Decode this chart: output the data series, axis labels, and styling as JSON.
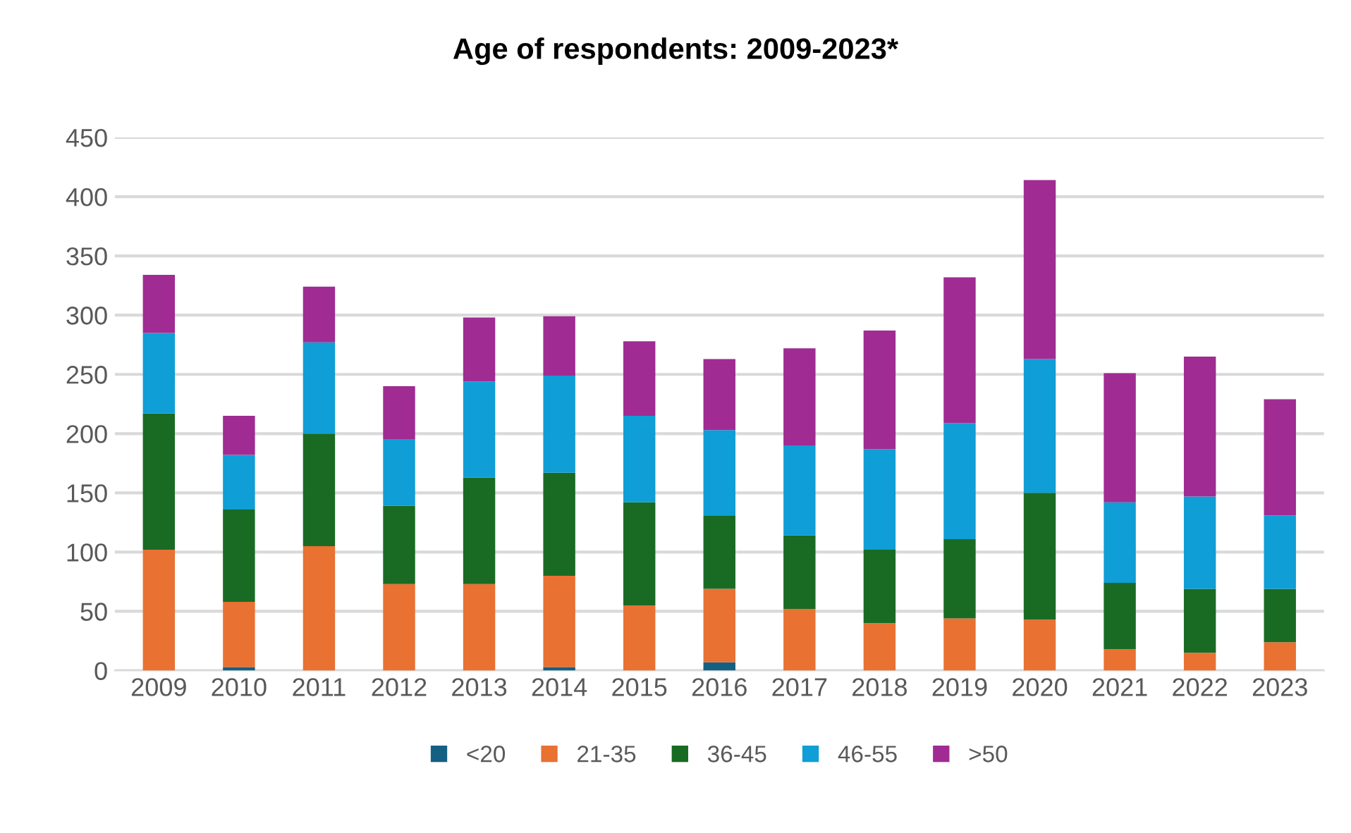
{
  "chart_data": {
    "type": "bar",
    "title": "Age of respondents: 2009-2023*",
    "stacked": true,
    "categories": [
      "2009",
      "2010",
      "2011",
      "2012",
      "2013",
      "2014",
      "2015",
      "2016",
      "2017",
      "2018",
      "2019",
      "2020",
      "2021",
      "2022",
      "2023"
    ],
    "series": [
      {
        "name": "<20",
        "color": "#156082",
        "values": [
          0,
          3,
          0,
          0,
          0,
          3,
          0,
          7,
          0,
          0,
          0,
          0,
          0,
          0,
          0
        ]
      },
      {
        "name": "21-35",
        "color": "#e97132",
        "values": [
          102,
          55,
          105,
          73,
          73,
          77,
          55,
          62,
          52,
          40,
          44,
          43,
          18,
          15,
          24
        ]
      },
      {
        "name": "36-45",
        "color": "#196b24",
        "values": [
          115,
          78,
          95,
          66,
          90,
          87,
          87,
          62,
          62,
          62,
          67,
          107,
          56,
          54,
          45
        ]
      },
      {
        "name": "46-55",
        "color": "#0f9ed5",
        "values": [
          68,
          46,
          77,
          56,
          81,
          82,
          73,
          72,
          76,
          85,
          98,
          113,
          68,
          78,
          62
        ]
      },
      {
        "name": ">50",
        "color": "#a02b93",
        "values": [
          49,
          33,
          47,
          45,
          54,
          50,
          63,
          60,
          82,
          100,
          123,
          151,
          109,
          118,
          98
        ]
      }
    ],
    "ylim": [
      0,
      450
    ],
    "yticks": [
      0,
      50,
      100,
      150,
      200,
      250,
      300,
      350,
      400,
      450
    ],
    "grid": "y",
    "legend": "bottom"
  }
}
